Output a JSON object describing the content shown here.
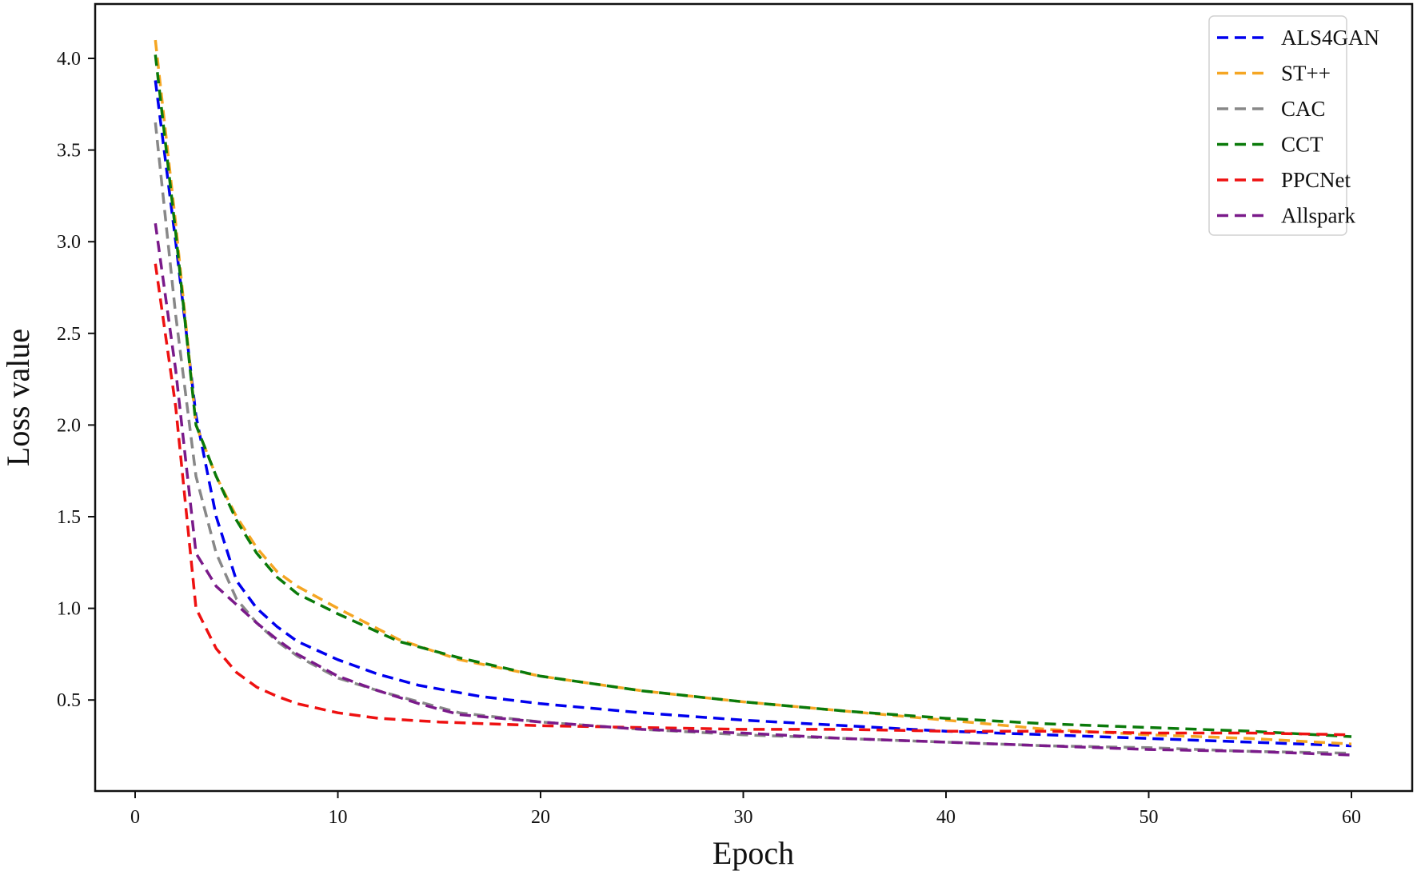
{
  "chart_data": {
    "type": "line",
    "title": "",
    "xlabel": "Epoch",
    "ylabel": "Loss value",
    "xlim": [
      -2,
      63
    ],
    "ylim": [
      0.0,
      4.3
    ],
    "xticks": [
      0,
      10,
      20,
      30,
      40,
      50,
      60
    ],
    "xtick_labels": [
      "0",
      "10",
      "20",
      "30",
      "40",
      "50",
      "60"
    ],
    "yticks": [
      0.5,
      1.0,
      1.5,
      2.0,
      2.5,
      3.0,
      3.5,
      4.0
    ],
    "ytick_labels": [
      "0.5",
      "1.0",
      "1.5",
      "2.0",
      "2.5",
      "3.0",
      "3.5",
      "4.0"
    ],
    "grid": false,
    "legend_position": "upper right",
    "line_style": "dashed",
    "series": [
      {
        "name": "ALS4GAN",
        "color": "#0000ee",
        "x": [
          1,
          2,
          3,
          4,
          5,
          6,
          7,
          8,
          10,
          12,
          14,
          17,
          20,
          25,
          30,
          35,
          40,
          45,
          50,
          55,
          60
        ],
        "values": [
          3.88,
          3.0,
          2.05,
          1.5,
          1.15,
          1.0,
          0.9,
          0.82,
          0.72,
          0.64,
          0.58,
          0.52,
          0.48,
          0.43,
          0.39,
          0.36,
          0.33,
          0.31,
          0.29,
          0.27,
          0.25
        ]
      },
      {
        "name": "ST++",
        "color": "#f5a623",
        "x": [
          1,
          2,
          3,
          4,
          5,
          6,
          7,
          8,
          10,
          13,
          16,
          20,
          25,
          30,
          35,
          40,
          45,
          50,
          55,
          60
        ],
        "values": [
          4.1,
          3.1,
          2.0,
          1.72,
          1.5,
          1.33,
          1.2,
          1.12,
          1.0,
          0.83,
          0.72,
          0.63,
          0.55,
          0.49,
          0.44,
          0.39,
          0.34,
          0.31,
          0.29,
          0.26
        ]
      },
      {
        "name": "CAC",
        "color": "#888888",
        "x": [
          1,
          2,
          3,
          4,
          5,
          6,
          7,
          8,
          10,
          12,
          14,
          16,
          20,
          25,
          30,
          35,
          40,
          45,
          50,
          55,
          60
        ],
        "values": [
          3.65,
          2.6,
          1.72,
          1.3,
          1.05,
          0.92,
          0.82,
          0.74,
          0.62,
          0.55,
          0.49,
          0.43,
          0.38,
          0.34,
          0.31,
          0.29,
          0.27,
          0.25,
          0.24,
          0.22,
          0.21
        ]
      },
      {
        "name": "CCT",
        "color": "#0a7a0a",
        "x": [
          1,
          2,
          3,
          4,
          5,
          6,
          7,
          8,
          10,
          13,
          16,
          20,
          25,
          30,
          35,
          40,
          45,
          50,
          55,
          60
        ],
        "values": [
          4.02,
          3.05,
          2.0,
          1.72,
          1.48,
          1.3,
          1.17,
          1.08,
          0.97,
          0.82,
          0.73,
          0.63,
          0.55,
          0.49,
          0.44,
          0.4,
          0.37,
          0.35,
          0.33,
          0.3
        ]
      },
      {
        "name": "PPCNet",
        "color": "#ee1111",
        "x": [
          1,
          2,
          3,
          4,
          5,
          6,
          7,
          8,
          10,
          12,
          15,
          20,
          25,
          30,
          35,
          40,
          45,
          50,
          55,
          60
        ],
        "values": [
          2.88,
          2.1,
          1.0,
          0.78,
          0.65,
          0.57,
          0.52,
          0.48,
          0.43,
          0.4,
          0.38,
          0.36,
          0.35,
          0.34,
          0.34,
          0.33,
          0.33,
          0.32,
          0.32,
          0.31
        ]
      },
      {
        "name": "Allspark",
        "color": "#7a1a8a",
        "x": [
          1,
          2,
          3,
          4,
          5,
          6,
          7,
          8,
          10,
          12,
          14,
          16,
          20,
          25,
          30,
          35,
          40,
          45,
          50,
          55,
          60
        ],
        "values": [
          3.1,
          2.3,
          1.3,
          1.12,
          1.02,
          0.92,
          0.83,
          0.75,
          0.63,
          0.55,
          0.48,
          0.42,
          0.38,
          0.34,
          0.32,
          0.29,
          0.27,
          0.25,
          0.23,
          0.22,
          0.2
        ]
      }
    ]
  }
}
